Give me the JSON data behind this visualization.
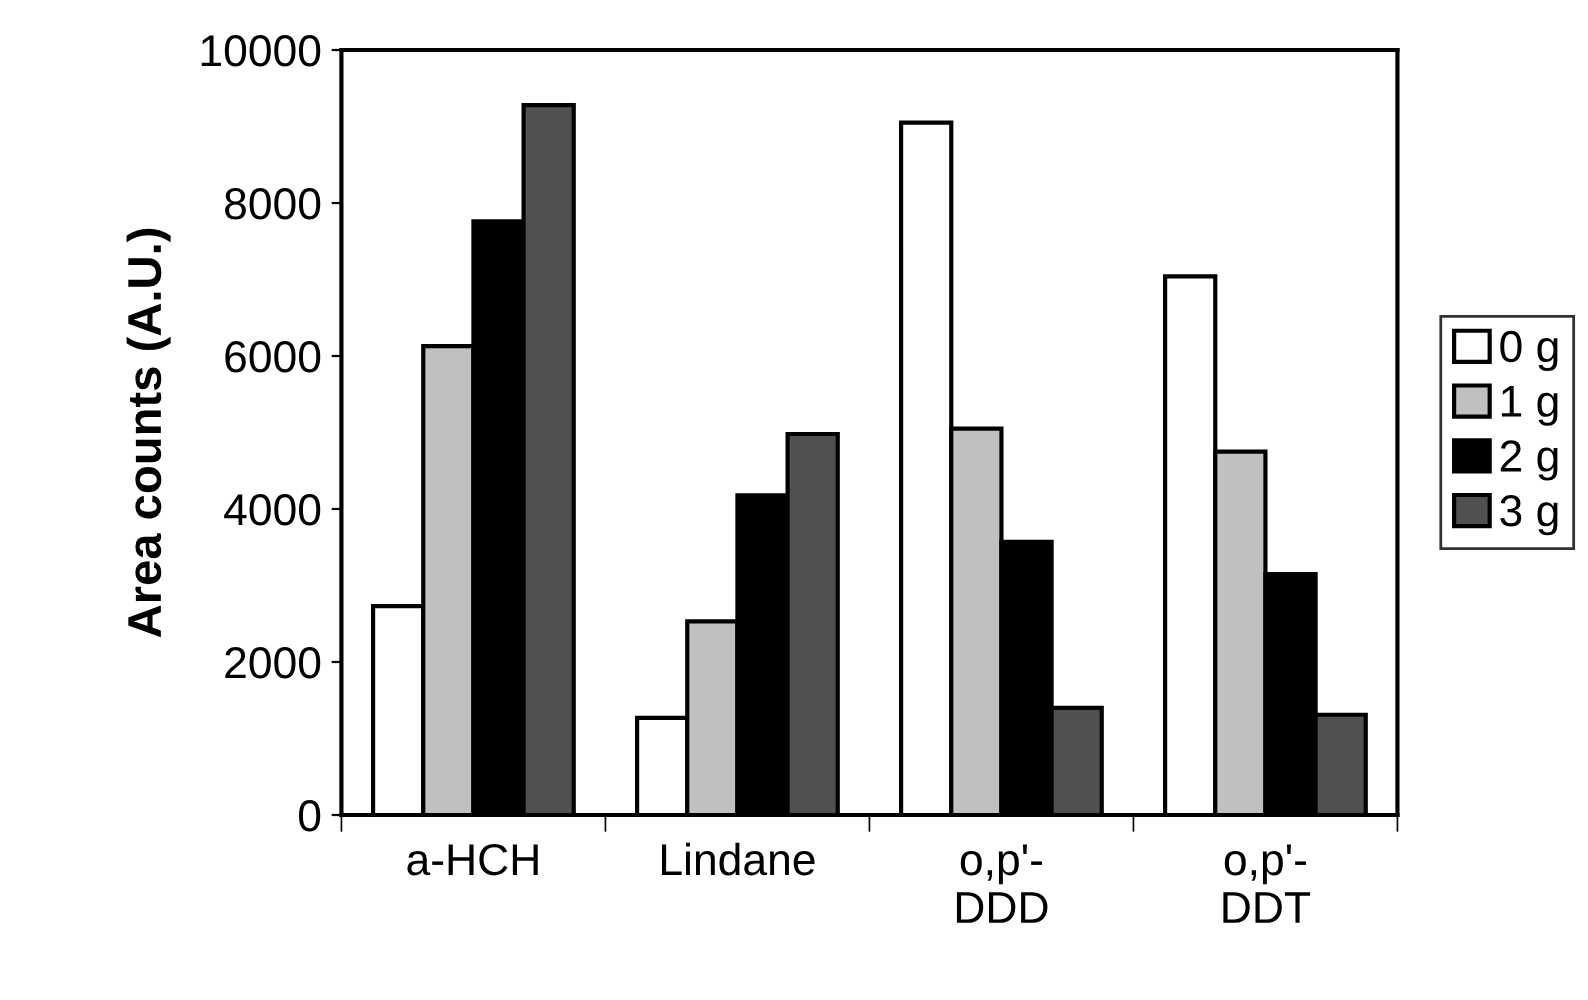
{
  "chart_data": {
    "type": "bar",
    "ylabel": "Area counts (A.U.)",
    "categories": [
      "a-HCH",
      "Lindane",
      "o,p'-\nDDD",
      "o,p'-\nDDT"
    ],
    "series": [
      {
        "name": "0 g",
        "color": "#ffffff",
        "values": [
          2730,
          1270,
          9050,
          7040
        ]
      },
      {
        "name": "1 g",
        "color": "#c0c0c0",
        "values": [
          6130,
          2530,
          5050,
          4750
        ]
      },
      {
        "name": "2 g",
        "color": "#000000",
        "values": [
          7760,
          4180,
          3570,
          3150
        ]
      },
      {
        "name": "3 g",
        "color": "#505050",
        "values": [
          9280,
          4980,
          1400,
          1310
        ]
      }
    ],
    "ylim": [
      0,
      10000
    ],
    "yticks": [
      0,
      2000,
      4000,
      6000,
      8000,
      10000
    ],
    "grid": false,
    "legend": "right"
  }
}
